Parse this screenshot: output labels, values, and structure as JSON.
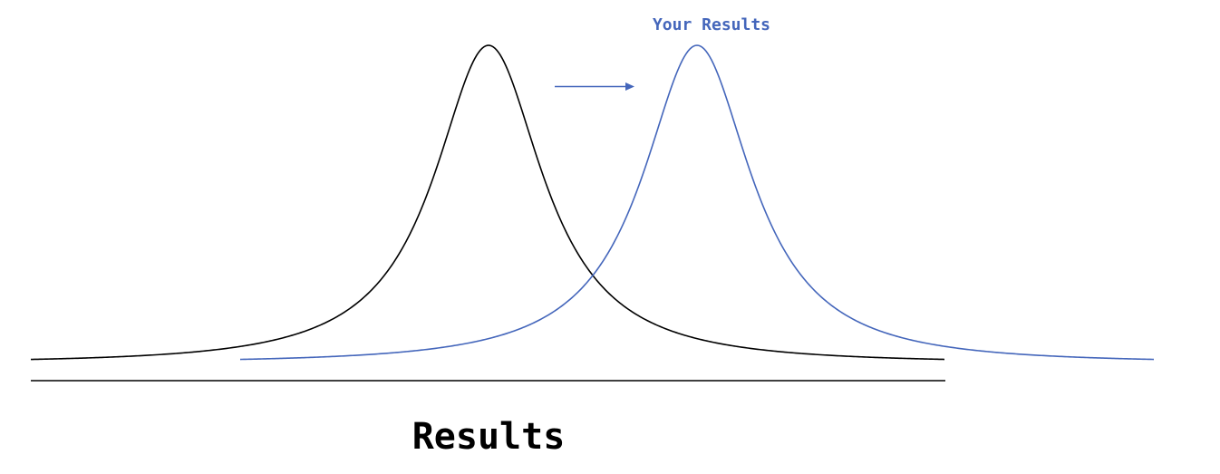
{
  "diagram": {
    "top_label": "Your Results",
    "axis_label": "Results"
  },
  "colors": {
    "baseline_curve": "#000000",
    "shifted_curve": "#4466bb",
    "axis": "#000000",
    "label_blue": "#4466bb",
    "label_black": "#000000"
  },
  "icons": {
    "shift_arrow": "right-arrow-icon"
  }
}
